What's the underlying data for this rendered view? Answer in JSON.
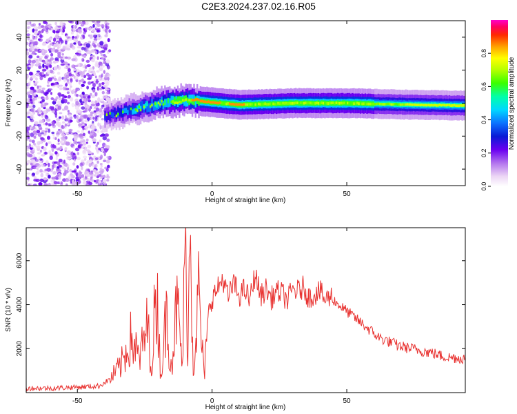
{
  "title": "C2E3.2024.237.02.16.R05",
  "chart_data": [
    {
      "type": "heatmap",
      "xlabel": "Height of straight line (km)",
      "ylabel": "Frequency (Hz)",
      "xlim": [
        -69,
        94
      ],
      "ylim": [
        -50,
        50
      ],
      "x_ticks": [
        -50,
        0,
        50
      ],
      "y_ticks": [
        -40,
        -20,
        0,
        20,
        40
      ],
      "colorbar": {
        "label": "Normalized spectral amplitude",
        "range": [
          0,
          1
        ],
        "ticks": [
          "0.0",
          "0.2",
          "0.4",
          "0.6",
          "0.8"
        ]
      },
      "description_values": {
        "noise_region_x": [
          -69,
          -38
        ],
        "ridge_frequency_hz": [
          [
            -40,
            -8
          ],
          [
            -30,
            -4
          ],
          [
            -20,
            0
          ],
          [
            -10,
            2
          ],
          [
            0,
            0.5
          ],
          [
            10,
            -1
          ],
          [
            30,
            0
          ],
          [
            50,
            0
          ],
          [
            75,
            -1
          ],
          [
            94,
            -1.5
          ]
        ]
      }
    },
    {
      "type": "line",
      "xlabel": "Height of straight line (km)",
      "ylabel": "SNR (10 * v/v)",
      "xlim": [
        -69,
        94
      ],
      "ylim": [
        0,
        7500
      ],
      "x_ticks": [
        -50,
        0,
        50
      ],
      "y_ticks": [
        2000,
        4000,
        6000
      ],
      "series": [
        {
          "color": "#e8312f",
          "x": [
            -69,
            -60,
            -50,
            -42,
            -38,
            -34,
            -30,
            -27,
            -24,
            -22,
            -21,
            -19,
            -17,
            -15,
            -13,
            -11,
            -10,
            -9,
            -8,
            -7,
            -5,
            -3,
            -1,
            0,
            2,
            4,
            6,
            8,
            10,
            12,
            14,
            16,
            18,
            20,
            22,
            24,
            26,
            28,
            30,
            32,
            34,
            36,
            38,
            40,
            42,
            44,
            46,
            48,
            50,
            52,
            54,
            56,
            58,
            60,
            62,
            64,
            66,
            68,
            70,
            72,
            74,
            76,
            78,
            80,
            82,
            84,
            86,
            88,
            90,
            92,
            94
          ],
          "values": [
            200,
            200,
            250,
            300,
            600,
            1200,
            2500,
            1500,
            3000,
            1000,
            5500,
            800,
            3500,
            1300,
            4000,
            1200,
            6500,
            2500,
            7500,
            1000,
            4500,
            700,
            4000,
            4300,
            4700,
            5200,
            4300,
            5000,
            4400,
            4700,
            4200,
            5400,
            4400,
            4700,
            4300,
            4600,
            4500,
            4200,
            4700,
            4600,
            4800,
            4300,
            4500,
            4600,
            4200,
            4400,
            4100,
            3900,
            3700,
            3500,
            3300,
            3100,
            2900,
            2700,
            2500,
            2400,
            2300,
            2200,
            2100,
            2050,
            2000,
            1950,
            1900,
            1850,
            1800,
            1700,
            1650,
            1600,
            1600,
            1550,
            1600
          ]
        }
      ]
    }
  ]
}
